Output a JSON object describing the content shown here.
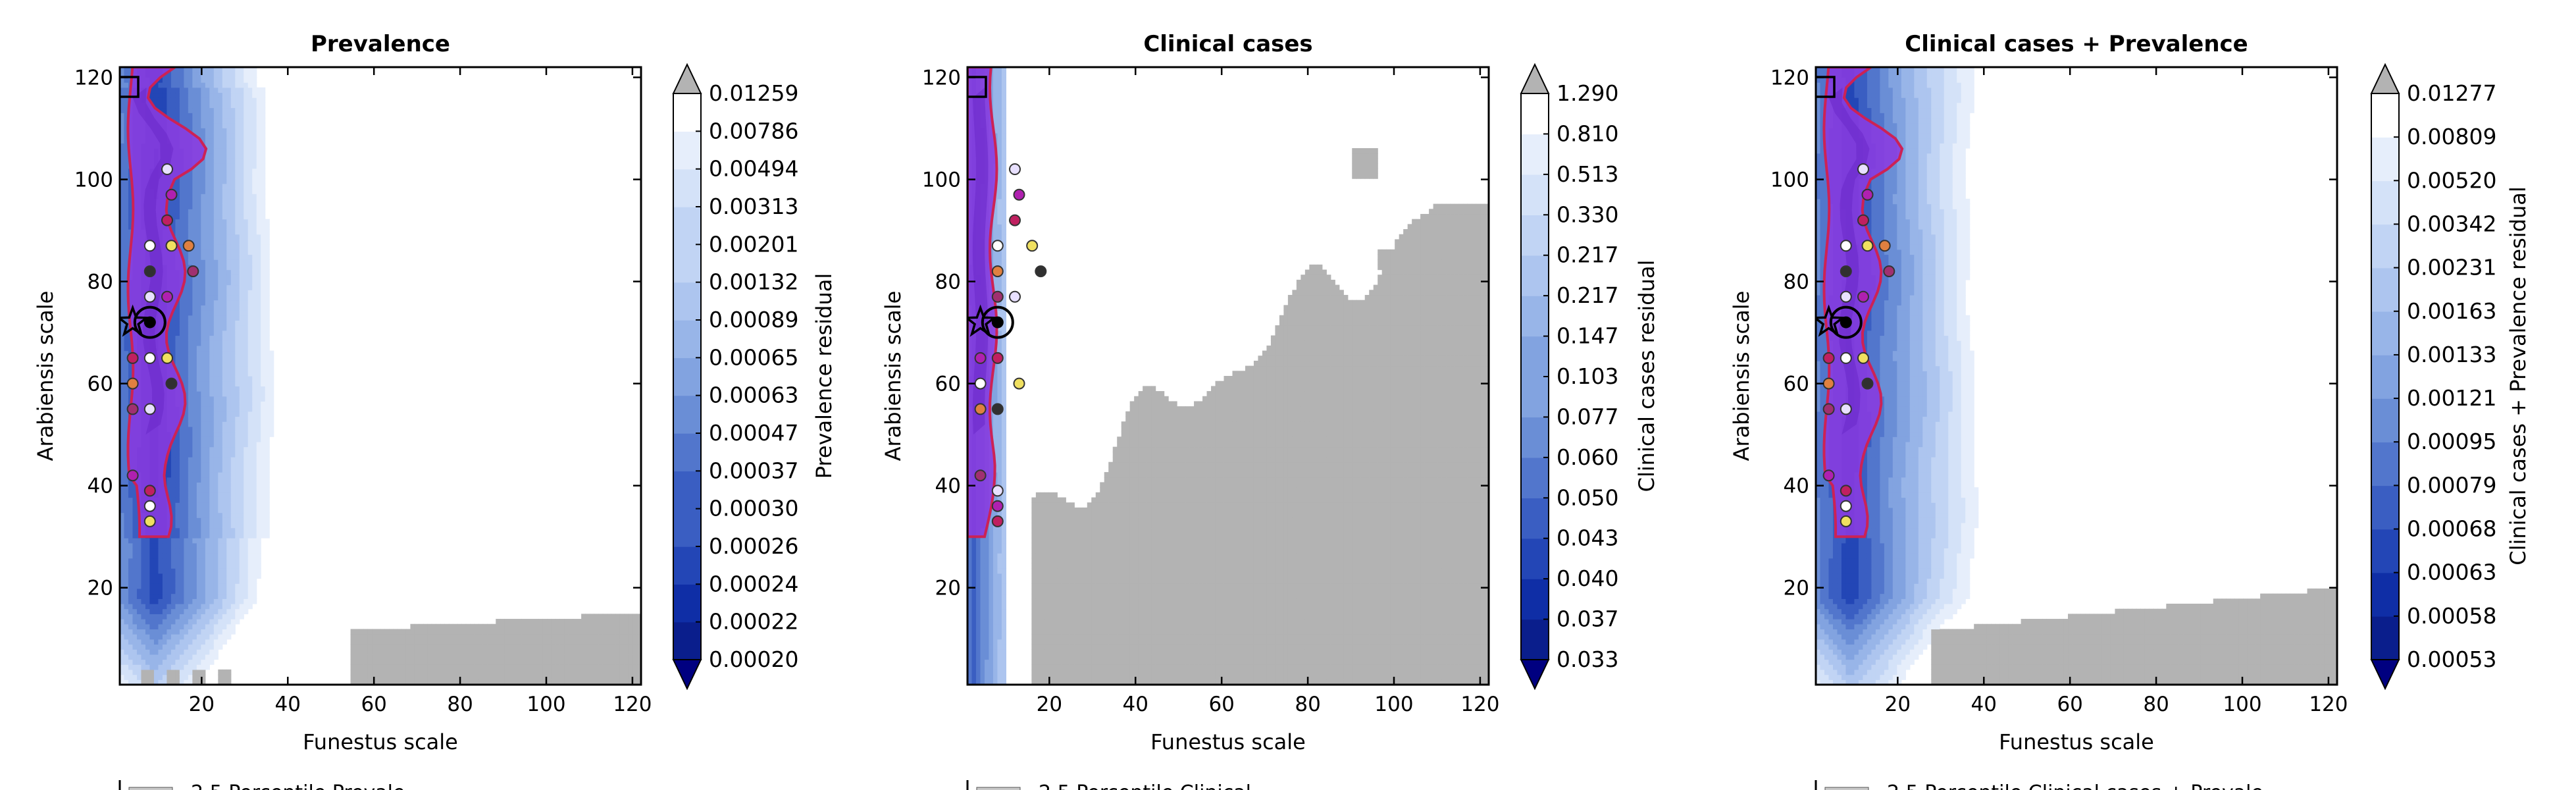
{
  "figure": {
    "panels": [
      {
        "title": "Prevalence",
        "colorbar_label": "Prevalence residual",
        "legend_visible_text": "2.5 Percentile Prevale"
      },
      {
        "title": "Clinical cases",
        "colorbar_label": "Clinical cases residual",
        "legend_visible_text": "2.5 Percentile Clinical"
      },
      {
        "title": "Clinical cases + Prevalence",
        "colorbar_label": "Clinical cases + Prevalence residual",
        "legend_visible_text": "2.5 Percentile Clinical cases + Prevale"
      }
    ]
  },
  "colors": {
    "filled_levels": [
      "#0a1e8c",
      "#0f2ea6",
      "#2346b6",
      "#3a5ec2",
      "#5276cc",
      "#6a8ed6",
      "#82a3e0",
      "#98b5e8",
      "#adc5ef",
      "#c1d4f4",
      "#d4e2f8",
      "#e6eefb",
      "#ffffff"
    ],
    "over_color": "#b3b3b3",
    "under_color": "#000080",
    "purple_region": "#8a3be0",
    "purple_edge": "#cc2255",
    "dot_colors": [
      "#e8e0ff",
      "#b020b0",
      "#c02060",
      "#ffffff",
      "#f0e060",
      "#e08040",
      "#303030",
      "#a03070"
    ]
  },
  "chart_data": [
    {
      "type": "heatmap",
      "title": "Prevalence",
      "xlabel": "Funestus scale",
      "ylabel": "Arabiensis scale",
      "xlim": [
        1,
        122
      ],
      "ylim": [
        1,
        122
      ],
      "xticks": [
        20,
        40,
        60,
        80,
        100,
        120
      ],
      "yticks": [
        20,
        40,
        60,
        80,
        100,
        120
      ],
      "colorbar": {
        "label": "Prevalence residual",
        "levels": [
          "0.00020",
          "0.00022",
          "0.00024",
          "0.00026",
          "0.00030",
          "0.00037",
          "0.00047",
          "0.00063",
          "0.00065",
          "0.00089",
          "0.00132",
          "0.00201",
          "0.00313",
          "0.00494",
          "0.00786",
          "0.01259"
        ],
        "extend": "both"
      },
      "markers": {
        "star": [
          4,
          72
        ],
        "circled_point": [
          8,
          72
        ],
        "square": [
          2,
          118
        ]
      },
      "points": [
        [
          12,
          102
        ],
        [
          13,
          97
        ],
        [
          12,
          92
        ],
        [
          8,
          87
        ],
        [
          13,
          87
        ],
        [
          17,
          87
        ],
        [
          8,
          82
        ],
        [
          18,
          82
        ],
        [
          8,
          77
        ],
        [
          12,
          77
        ],
        [
          4,
          65
        ],
        [
          8,
          65
        ],
        [
          12,
          65
        ],
        [
          4,
          60
        ],
        [
          13,
          60
        ],
        [
          4,
          55
        ],
        [
          8,
          55
        ],
        [
          4,
          42
        ],
        [
          8,
          39
        ],
        [
          8,
          36
        ],
        [
          8,
          33
        ]
      ]
    },
    {
      "type": "heatmap",
      "title": "Clinical cases",
      "xlabel": "Funestus scale",
      "ylabel": "Arabiensis scale",
      "xlim": [
        1,
        122
      ],
      "ylim": [
        1,
        122
      ],
      "xticks": [
        20,
        40,
        60,
        80,
        100,
        120
      ],
      "yticks": [
        20,
        40,
        60,
        80,
        100,
        120
      ],
      "colorbar": {
        "label": "Clinical cases residual",
        "levels": [
          "0.033",
          "0.037",
          "0.040",
          "0.043",
          "0.050",
          "0.060",
          "0.077",
          "0.103",
          "0.147",
          "0.217",
          "0.217",
          "0.330",
          "0.513",
          "0.810",
          "1.290"
        ],
        "extend": "both"
      },
      "markers": {
        "star": [
          4,
          72
        ],
        "circled_point": [
          8,
          72
        ],
        "square": [
          2,
          118
        ]
      },
      "points": [
        [
          12,
          102
        ],
        [
          13,
          97
        ],
        [
          12,
          92
        ],
        [
          8,
          87
        ],
        [
          16,
          87
        ],
        [
          8,
          82
        ],
        [
          18,
          82
        ],
        [
          8,
          77
        ],
        [
          12,
          77
        ],
        [
          4,
          65
        ],
        [
          8,
          65
        ],
        [
          4,
          60
        ],
        [
          13,
          60
        ],
        [
          4,
          55
        ],
        [
          8,
          55
        ],
        [
          4,
          42
        ],
        [
          8,
          39
        ],
        [
          8,
          36
        ],
        [
          8,
          33
        ]
      ]
    },
    {
      "type": "heatmap",
      "title": "Clinical cases + Prevalence",
      "xlabel": "Funestus scale",
      "ylabel": "Arabiensis scale",
      "xlim": [
        1,
        122
      ],
      "ylim": [
        1,
        122
      ],
      "xticks": [
        20,
        40,
        60,
        80,
        100,
        120
      ],
      "yticks": [
        20,
        40,
        60,
        80,
        100,
        120
      ],
      "colorbar": {
        "label": "Clinical cases + Prevalence residual",
        "levels": [
          "0.00053",
          "0.00058",
          "0.00063",
          "0.00068",
          "0.00079",
          "0.00095",
          "0.00121",
          "0.00133",
          "0.00163",
          "0.00231",
          "0.00342",
          "0.00520",
          "0.00809",
          "0.01277"
        ],
        "extend": "both"
      },
      "markers": {
        "star": [
          4,
          72
        ],
        "circled_point": [
          8,
          72
        ],
        "square": [
          2,
          118
        ]
      },
      "points": [
        [
          12,
          102
        ],
        [
          13,
          97
        ],
        [
          12,
          92
        ],
        [
          8,
          87
        ],
        [
          13,
          87
        ],
        [
          17,
          87
        ],
        [
          8,
          82
        ],
        [
          18,
          82
        ],
        [
          8,
          77
        ],
        [
          12,
          77
        ],
        [
          4,
          65
        ],
        [
          8,
          65
        ],
        [
          12,
          65
        ],
        [
          4,
          60
        ],
        [
          13,
          60
        ],
        [
          4,
          55
        ],
        [
          8,
          55
        ],
        [
          4,
          42
        ],
        [
          8,
          39
        ],
        [
          8,
          36
        ],
        [
          8,
          33
        ]
      ]
    }
  ]
}
